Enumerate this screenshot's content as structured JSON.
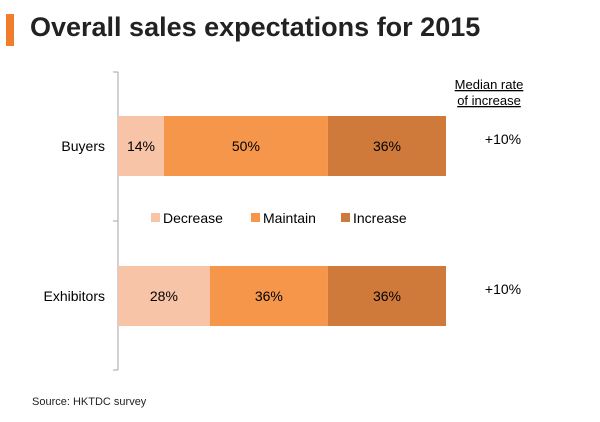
{
  "title": "Overall sales expectations for 2015",
  "source": "Source: HKTDC  survey",
  "median_header": [
    "Median rate",
    "of increase"
  ],
  "chart_data": {
    "type": "bar",
    "orientation": "horizontal",
    "stacked": true,
    "categories": [
      "Buyers",
      "Exhibitors"
    ],
    "series": [
      {
        "name": "Decrease",
        "values": [
          14,
          28
        ],
        "color": "#f8c4a8"
      },
      {
        "name": "Maintain",
        "values": [
          50,
          36
        ],
        "color": "#f5964b"
      },
      {
        "name": "Increase",
        "values": [
          36,
          36
        ],
        "color": "#cf7a3a"
      }
    ],
    "value_suffix": "%",
    "median_rates": [
      "+10%",
      "+10%"
    ],
    "legend_position": "middle",
    "grid": false
  },
  "colors": {
    "accent": "#f07d2c",
    "axis": "#a6a6a6"
  }
}
